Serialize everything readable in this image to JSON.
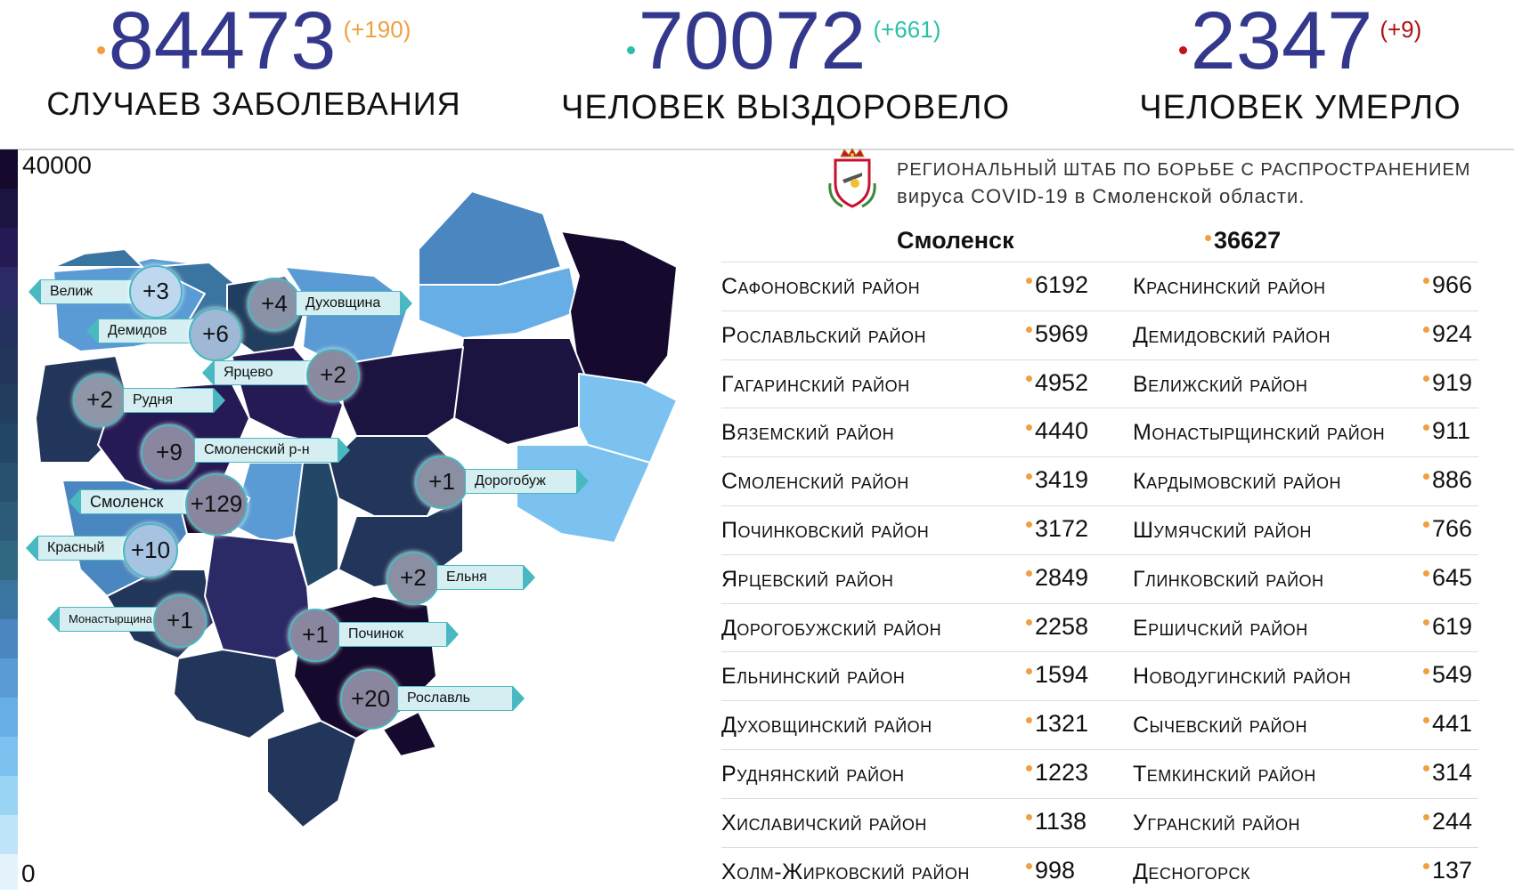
{
  "stats": {
    "cases": {
      "value": "84473",
      "delta": "(+190)",
      "label": "Случаев заболевания",
      "dot_color": "#f0a040",
      "delta_color": "#f0a040"
    },
    "recovered": {
      "value": "70072",
      "delta": "(+661)",
      "label": "Человек выздоровело",
      "dot_color": "#2bbfa8",
      "delta_color": "#2bbfa8"
    },
    "deaths": {
      "value": "2347",
      "delta": "(+9)",
      "label": "Человек умерло",
      "dot_color": "#c0141e",
      "delta_color": "#b01010"
    }
  },
  "legend": {
    "max": "40000",
    "min": "0"
  },
  "header": {
    "title_line1": "Региональный штаб по борьбе с распространением",
    "title_line2": "вируса COVID-19 в Смоленской области.",
    "emblem_icon": "smolensk-coat-of-arms-icon"
  },
  "city": {
    "name": "Смоленск",
    "value": "36627"
  },
  "districts_left": [
    {
      "name": "Сафоновский район",
      "value": "6192"
    },
    {
      "name": "Рославльский район",
      "value": "5969"
    },
    {
      "name": "Гагаринский район",
      "value": "4952"
    },
    {
      "name": "Вяземский район",
      "value": "4440"
    },
    {
      "name": "Смоленский район",
      "value": "3419"
    },
    {
      "name": "Починковский район",
      "value": "3172"
    },
    {
      "name": "Ярцевский район",
      "value": "2849"
    },
    {
      "name": "Дорогобужский район",
      "value": "2258"
    },
    {
      "name": "Ельнинский район",
      "value": "1594"
    },
    {
      "name": "Духовщинский район",
      "value": "1321"
    },
    {
      "name": "Руднянский район",
      "value": "1223"
    },
    {
      "name": "Хиславичский район",
      "value": "1138"
    },
    {
      "name": "Холм-Жирковский район",
      "value": "998"
    }
  ],
  "districts_right": [
    {
      "name": "Краснинский район",
      "value": "966"
    },
    {
      "name": "Демидовский район",
      "value": "924"
    },
    {
      "name": "Велижский район",
      "value": "919"
    },
    {
      "name": "Монастырщинский район",
      "value": "911"
    },
    {
      "name": "Кардымовский район",
      "value": "886"
    },
    {
      "name": "Шумячский район",
      "value": "766"
    },
    {
      "name": "Глинковский район",
      "value": "645"
    },
    {
      "name": "Ершичский район",
      "value": "619"
    },
    {
      "name": "Новодугинский район",
      "value": "549"
    },
    {
      "name": "Сычевский район",
      "value": "441"
    },
    {
      "name": "Темкинский район",
      "value": "314"
    },
    {
      "name": "Угранский район",
      "value": "244"
    },
    {
      "name": "Десногорск",
      "value": "137"
    }
  ],
  "map_markers": [
    {
      "label": "Велиж",
      "delta": "+3"
    },
    {
      "label": "Демидов",
      "delta": "+6"
    },
    {
      "label": "Духовщина",
      "delta": "+4"
    },
    {
      "label": "Ярцево",
      "delta": "+2"
    },
    {
      "label": "Рудня",
      "delta": "+2"
    },
    {
      "label": "Смоленский р-н",
      "delta": "+9"
    },
    {
      "label": "Смоленск",
      "delta": "+129"
    },
    {
      "label": "Дорогобуж",
      "delta": "+1"
    },
    {
      "label": "Красный",
      "delta": "+10"
    },
    {
      "label": "Ельня",
      "delta": "+2"
    },
    {
      "label": "Монастырщина",
      "delta": "+1"
    },
    {
      "label": "Починок",
      "delta": "+1"
    },
    {
      "label": "Рославль",
      "delta": "+20"
    }
  ]
}
